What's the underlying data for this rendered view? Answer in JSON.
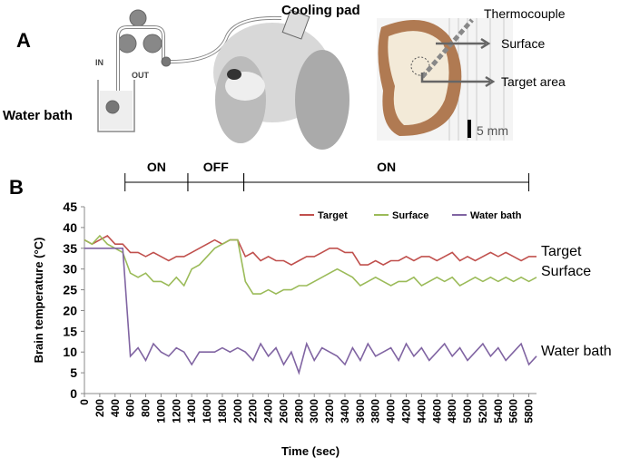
{
  "panel_a": {
    "label": "A",
    "in_label": "IN",
    "out_label": "OUT",
    "water_bath": "Water bath",
    "cooling_pad": "Cooling pad",
    "thermocouple": "Thermocouple",
    "surface": "Surface",
    "target_area": "Target area",
    "scale": "5 mm"
  },
  "chart_data": {
    "type": "line",
    "panel_label": "B",
    "x_label": "Time (sec)",
    "y_label": "Brain temperature (°C)",
    "xlim": [
      0,
      5900
    ],
    "ylim": [
      0,
      45
    ],
    "xticks": [
      0,
      200,
      400,
      600,
      800,
      1000,
      1200,
      1400,
      1600,
      1800,
      2000,
      2200,
      2400,
      2600,
      2800,
      3000,
      3200,
      3400,
      3600,
      3800,
      4000,
      4200,
      4400,
      4600,
      4800,
      5000,
      5200,
      5400,
      5600,
      5800
    ],
    "yticks": [
      0,
      5,
      10,
      15,
      20,
      25,
      30,
      35,
      40,
      45
    ],
    "grid": false,
    "legend": "top-right",
    "phases": [
      {
        "label": "ON",
        "start": 530,
        "end": 1350
      },
      {
        "label": "OFF",
        "start": 1350,
        "end": 2080
      },
      {
        "label": "ON",
        "start": 2080,
        "end": 5800
      }
    ],
    "x": [
      0,
      100,
      200,
      300,
      400,
      500,
      600,
      700,
      800,
      900,
      1000,
      1100,
      1200,
      1300,
      1400,
      1500,
      1600,
      1700,
      1800,
      1900,
      2000,
      2100,
      2200,
      2300,
      2400,
      2500,
      2600,
      2700,
      2800,
      2900,
      3000,
      3100,
      3200,
      3300,
      3400,
      3500,
      3600,
      3700,
      3800,
      3900,
      4000,
      4100,
      4200,
      4300,
      4400,
      4500,
      4600,
      4700,
      4800,
      4900,
      5000,
      5100,
      5200,
      5300,
      5400,
      5500,
      5600,
      5700,
      5800,
      5900
    ],
    "series": [
      {
        "name": "Target",
        "color": "#c0504d",
        "values": [
          37,
          36,
          37,
          38,
          36,
          36,
          34,
          34,
          33,
          34,
          33,
          32,
          33,
          33,
          34,
          35,
          36,
          37,
          36,
          37,
          37,
          33,
          34,
          32,
          33,
          32,
          32,
          31,
          32,
          33,
          33,
          34,
          35,
          35,
          34,
          34,
          31,
          31,
          32,
          31,
          32,
          32,
          33,
          32,
          33,
          33,
          32,
          33,
          34,
          32,
          33,
          32,
          33,
          34,
          33,
          34,
          33,
          32,
          33,
          33
        ]
      },
      {
        "name": "Surface",
        "color": "#9bbb59",
        "values": [
          37,
          36,
          38,
          36,
          35,
          34,
          29,
          28,
          29,
          27,
          27,
          26,
          28,
          26,
          30,
          31,
          33,
          35,
          36,
          37,
          37,
          27,
          24,
          24,
          25,
          24,
          25,
          25,
          26,
          26,
          27,
          28,
          29,
          30,
          29,
          28,
          26,
          27,
          28,
          27,
          26,
          27,
          27,
          28,
          26,
          27,
          28,
          27,
          28,
          26,
          27,
          28,
          27,
          28,
          27,
          28,
          27,
          28,
          27,
          28
        ]
      },
      {
        "name": "Water bath",
        "color": "#8064a2",
        "values": [
          35,
          35,
          35,
          35,
          35,
          35,
          9,
          11,
          8,
          12,
          10,
          9,
          11,
          10,
          7,
          10,
          10,
          10,
          11,
          10,
          11,
          10,
          8,
          12,
          9,
          11,
          7,
          10,
          5,
          12,
          8,
          11,
          10,
          9,
          7,
          11,
          8,
          12,
          9,
          10,
          11,
          8,
          12,
          9,
          11,
          8,
          10,
          12,
          9,
          11,
          8,
          10,
          12,
          9,
          11,
          8,
          10,
          12,
          7,
          9
        ]
      }
    ]
  }
}
